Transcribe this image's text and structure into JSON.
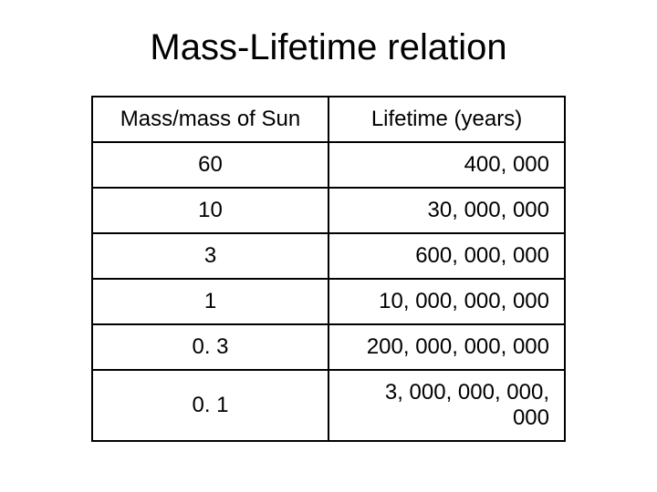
{
  "title": "Mass-Lifetime relation",
  "table": {
    "columns": [
      "Mass/mass of Sun",
      "Lifetime (years)"
    ],
    "rows": [
      [
        "60",
        "400, 000"
      ],
      [
        "10",
        "30, 000, 000"
      ],
      [
        "3",
        "600, 000, 000"
      ],
      [
        "1",
        "10, 000, 000, 000"
      ],
      [
        "0. 3",
        "200, 000, 000, 000"
      ],
      [
        "0. 1",
        "3, 000, 000, 000, 000"
      ]
    ],
    "border_color": "#000000",
    "background_color": "#ffffff",
    "title_fontsize": 40,
    "cell_fontsize": 24,
    "col_alignments": [
      "center",
      "right"
    ],
    "header_alignments": [
      "center",
      "center"
    ]
  }
}
